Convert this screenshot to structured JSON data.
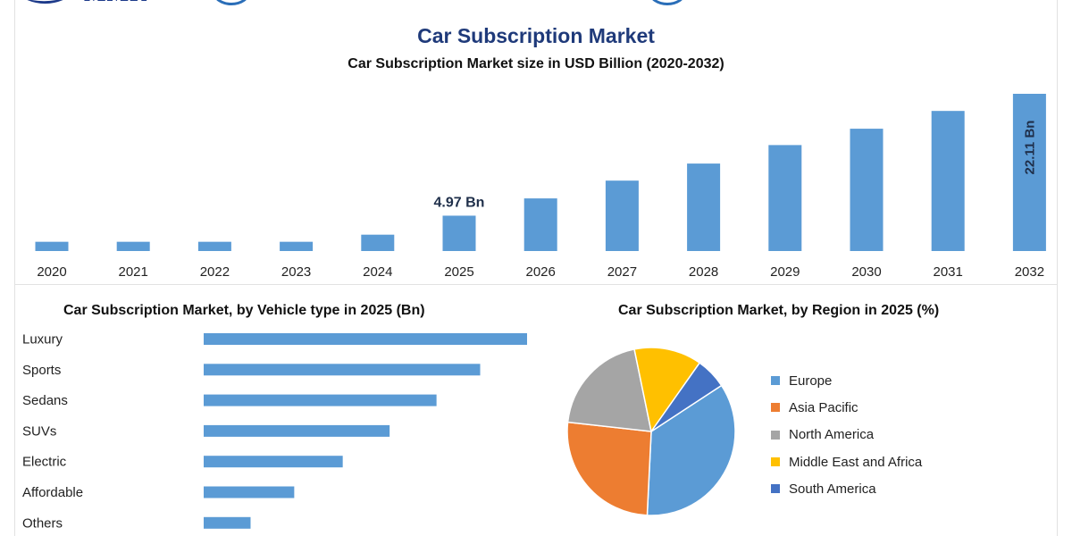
{
  "header": {
    "logo_text": "MMR",
    "title": "Car Subscription Market"
  },
  "chart_data": [
    {
      "type": "bar",
      "title": "Car Subscription Market size in USD Billion (2020-2032)",
      "categories": [
        "2020",
        "2021",
        "2022",
        "2023",
        "2024",
        "2025",
        "2026",
        "2027",
        "2028",
        "2029",
        "2030",
        "2031",
        "2032"
      ],
      "values": [
        1.3,
        1.3,
        1.3,
        1.3,
        2.3,
        4.97,
        7.4,
        9.9,
        12.3,
        14.9,
        17.2,
        19.7,
        22.11
      ],
      "data_labels": [
        {
          "index": 5,
          "text": "4.97 Bn"
        },
        {
          "index": 12,
          "text": "22.11 Bn"
        }
      ],
      "ylim": [
        0,
        22.11
      ],
      "color": "#5b9bd5",
      "grid": false
    },
    {
      "type": "bar",
      "orientation": "horizontal",
      "title": "Car Subscription Market, by Vehicle type in 2025 (Bn)",
      "categories": [
        "Luxury",
        "Sports",
        "Sedans",
        "SUVs",
        "Electric",
        "Affordable",
        "Others"
      ],
      "values": [
        100,
        85.5,
        72,
        57.5,
        43,
        28,
        14.5
      ],
      "color": "#5b9bd5",
      "grid": false
    },
    {
      "type": "pie",
      "title": "Car Subscription Market, by Region in 2025 (%)",
      "categories": [
        "Europe",
        "Asia Pacific",
        "North America",
        "Middle East and Africa",
        "South America"
      ],
      "values": [
        35,
        26,
        20,
        13,
        6
      ],
      "colors": [
        "#5b9bd5",
        "#ed7d31",
        "#a5a5a5",
        "#ffc000",
        "#4472c4"
      ],
      "legend_position": "right"
    }
  ]
}
